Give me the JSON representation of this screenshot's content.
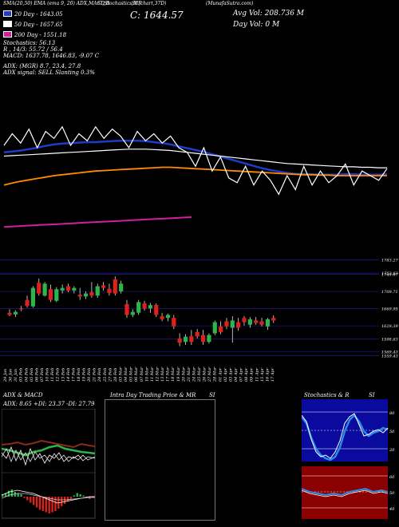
{
  "header": {
    "items": [
      "SMA(20,50) EMA (ema 9, 20) ADX,MACD,B",
      "SI,Stochastics,MR",
      "SI (chart,37D)",
      "(MunafaSutra.com)"
    ],
    "price": "C: 1644.57",
    "avg_vol": "Avg Vol: 208.736  M",
    "day_vol": "Day Vol: 0  M"
  },
  "legend": [
    {
      "label": "20  Day  - 1643.05",
      "color": "#1e3cc8"
    },
    {
      "label": "50  Day  - 1657.65",
      "color": "#ffffff"
    },
    {
      "label": "200  Day  - 1551.18",
      "color": "#d21ea0"
    }
  ],
  "indicators": [
    "Stochastics: 56.13",
    "R   ,   14/3: 55.72 / 56.4",
    "MACD: 1637.78,  1646.83,  -9.07 C",
    "ADX:                    (MGR) 8.7,  23.4,  27.8",
    "ADX  signal: SELL  Slanting  0.3%"
  ],
  "price_axis": [
    "1783.27",
    "1752.63",
    "1749.67",
    "1709.71",
    "1669.95",
    "1629.39",
    "1598.63",
    "1569.43",
    "1559.43"
  ],
  "date_labels": [
    "29 Jan",
    "30 Jan",
    "31 Jan",
    "03 Feb",
    "04 Feb",
    "05 Feb",
    "06 Feb",
    "07 Feb",
    "10 Feb",
    "11 Feb",
    "12 Feb",
    "13 Feb",
    "14 Feb",
    "17 Feb",
    "18 Feb",
    "19 Feb",
    "20 Feb",
    "21 Feb",
    "24 Feb",
    "25 Feb",
    "27 Feb",
    "28 Feb",
    "03 Mar",
    "04 Mar",
    "05 Mar",
    "06 Mar",
    "07 Mar",
    "10 Mar",
    "11 Mar",
    "12 Mar",
    "13 Mar",
    "17 Mar",
    "18 Mar",
    "19 Mar",
    "20 Mar",
    "21 Mar",
    "24 Mar",
    "25 Mar",
    "26 Mar",
    "27 Mar",
    "28 Mar",
    "01 Apr",
    "02 Apr",
    "03 Apr",
    "04 Apr",
    "07 Apr",
    "08 Apr",
    "09 Apr",
    "11 Apr",
    "15 Apr",
    "16 Apr",
    "17 Apr"
  ],
  "panels": {
    "adx_title": "ADX  & MACD",
    "adx_values": "ADX: 8.65  +DI: 23.37  -DI: 27.79",
    "intraday_title": "Intra  Day Trading Price  & MR",
    "intraday_si": "SI",
    "stoch_title": "Stochastics & R",
    "stoch_si": "SI",
    "stoch_ticks": [
      "80",
      "50",
      "20"
    ],
    "rsi_ticks": [
      "60",
      "50",
      "40"
    ]
  },
  "chart_data": [
    {
      "type": "line",
      "name": "price_ma",
      "series": [
        {
          "name": "20 Day",
          "color": "#1e3cc8",
          "values": [
            1690,
            1692,
            1694,
            1697,
            1700,
            1704,
            1707,
            1709,
            1710,
            1711,
            1712,
            1712,
            1713,
            1714,
            1715,
            1715,
            1715,
            1714,
            1712,
            1710,
            1707,
            1703,
            1699,
            1695,
            1691,
            1686,
            1681,
            1676,
            1671,
            1666,
            1661,
            1656,
            1652,
            1649,
            1646,
            1644,
            1643,
            1643,
            1642,
            1642,
            1642,
            1643,
            1643,
            1642,
            1642,
            1642,
            1643
          ]
        },
        {
          "name": "50 Day",
          "color": "#ffffff",
          "values": [
            1682,
            1683,
            1684,
            1685,
            1686,
            1687,
            1688,
            1689,
            1690,
            1691,
            1692,
            1693,
            1694,
            1695,
            1696,
            1697,
            1697,
            1697,
            1696,
            1695,
            1694,
            1692,
            1690,
            1688,
            1686,
            1684,
            1682,
            1680,
            1678,
            1676,
            1674,
            1672,
            1670,
            1668,
            1666,
            1665,
            1664,
            1663,
            1662,
            1661,
            1660,
            1659,
            1659,
            1658,
            1658,
            1657,
            1657
          ]
        },
        {
          "name": "200 Day",
          "color": "#d21ea0",
          "values": [
            1530,
            1531,
            1532,
            1533,
            1534,
            1535,
            1536,
            1537,
            1538,
            1539,
            1540,
            1541,
            1542,
            1543,
            1544,
            1545,
            1546,
            1547,
            1548,
            1549,
            1550,
            1551
          ]
        },
        {
          "name": "",
          "color": "#ff8c00",
          "values": [
            1620,
            1624,
            1628,
            1631,
            1634,
            1637,
            1640,
            1642,
            1644,
            1646,
            1648,
            1650,
            1651,
            1652,
            1653,
            1654,
            1655,
            1656,
            1657,
            1658,
            1658,
            1657,
            1656,
            1655,
            1654,
            1653,
            1652,
            1651,
            1650,
            1649,
            1648,
            1647,
            1646,
            1645,
            1644,
            1643,
            1642,
            1642,
            1641,
            1641,
            1640,
            1640,
            1640,
            1640,
            1640,
            1640,
            1640
          ]
        },
        {
          "name": "",
          "color": "#ffffff",
          "values": [
            1705,
            1730,
            1710,
            1740,
            1700,
            1735,
            1720,
            1745,
            1705,
            1730,
            1715,
            1745,
            1720,
            1740,
            1725,
            1700,
            1735,
            1715,
            1730,
            1710,
            1725,
            1700,
            1690,
            1660,
            1700,
            1650,
            1680,
            1635,
            1625,
            1660,
            1620,
            1650,
            1630,
            1600,
            1640,
            1610,
            1660,
            1620,
            1650,
            1625,
            1640,
            1665,
            1620,
            1650,
            1640,
            1630,
            1655
          ]
        }
      ]
    },
    {
      "type": "candlestick",
      "name": "ohlc",
      "candles": [
        {
          "o": 1660,
          "h": 1668,
          "l": 1652,
          "c": 1655
        },
        {
          "o": 1656,
          "h": 1666,
          "l": 1650,
          "c": 1662
        },
        {
          "o": 1670,
          "h": 1676,
          "l": 1664,
          "c": 1668
        },
        {
          "o": 1690,
          "h": 1700,
          "l": 1672,
          "c": 1676
        },
        {
          "o": 1675,
          "h": 1722,
          "l": 1672,
          "c": 1718
        },
        {
          "o": 1730,
          "h": 1740,
          "l": 1700,
          "c": 1705
        },
        {
          "o": 1700,
          "h": 1732,
          "l": 1698,
          "c": 1728
        },
        {
          "o": 1715,
          "h": 1726,
          "l": 1685,
          "c": 1690
        },
        {
          "o": 1688,
          "h": 1720,
          "l": 1685,
          "c": 1715
        },
        {
          "o": 1712,
          "h": 1726,
          "l": 1705,
          "c": 1718
        },
        {
          "o": 1722,
          "h": 1728,
          "l": 1708,
          "c": 1712
        },
        {
          "o": 1712,
          "h": 1722,
          "l": 1705,
          "c": 1718
        },
        {
          "o": 1702,
          "h": 1718,
          "l": 1690,
          "c": 1698
        },
        {
          "o": 1698,
          "h": 1710,
          "l": 1692,
          "c": 1705
        },
        {
          "o": 1708,
          "h": 1732,
          "l": 1695,
          "c": 1700
        },
        {
          "o": 1700,
          "h": 1728,
          "l": 1695,
          "c": 1722
        },
        {
          "o": 1724,
          "h": 1732,
          "l": 1712,
          "c": 1718
        },
        {
          "o": 1716,
          "h": 1728,
          "l": 1700,
          "c": 1706
        },
        {
          "o": 1738,
          "h": 1745,
          "l": 1700,
          "c": 1705
        },
        {
          "o": 1710,
          "h": 1735,
          "l": 1705,
          "c": 1728
        },
        {
          "o": 1680,
          "h": 1690,
          "l": 1648,
          "c": 1655
        },
        {
          "o": 1655,
          "h": 1668,
          "l": 1650,
          "c": 1662
        },
        {
          "o": 1660,
          "h": 1690,
          "l": 1655,
          "c": 1685
        },
        {
          "o": 1682,
          "h": 1688,
          "l": 1665,
          "c": 1670
        },
        {
          "o": 1670,
          "h": 1683,
          "l": 1660,
          "c": 1678
        },
        {
          "o": 1678,
          "h": 1682,
          "l": 1650,
          "c": 1655
        },
        {
          "o": 1652,
          "h": 1660,
          "l": 1640,
          "c": 1645
        },
        {
          "o": 1648,
          "h": 1658,
          "l": 1640,
          "c": 1655
        },
        {
          "o": 1648,
          "h": 1655,
          "l": 1622,
          "c": 1628
        },
        {
          "o": 1600,
          "h": 1612,
          "l": 1582,
          "c": 1590
        },
        {
          "o": 1592,
          "h": 1610,
          "l": 1585,
          "c": 1604
        },
        {
          "o": 1605,
          "h": 1620,
          "l": 1585,
          "c": 1592
        },
        {
          "o": 1615,
          "h": 1622,
          "l": 1600,
          "c": 1605
        },
        {
          "o": 1608,
          "h": 1620,
          "l": 1585,
          "c": 1592
        },
        {
          "o": 1592,
          "h": 1612,
          "l": 1588,
          "c": 1608
        },
        {
          "o": 1612,
          "h": 1642,
          "l": 1608,
          "c": 1638
        },
        {
          "o": 1628,
          "h": 1640,
          "l": 1610,
          "c": 1615
        },
        {
          "o": 1640,
          "h": 1648,
          "l": 1622,
          "c": 1628
        },
        {
          "o": 1625,
          "h": 1652,
          "l": 1590,
          "c": 1642
        },
        {
          "o": 1638,
          "h": 1648,
          "l": 1618,
          "c": 1625
        },
        {
          "o": 1648,
          "h": 1652,
          "l": 1630,
          "c": 1638
        },
        {
          "o": 1632,
          "h": 1650,
          "l": 1625,
          "c": 1645
        },
        {
          "o": 1642,
          "h": 1650,
          "l": 1632,
          "c": 1636
        },
        {
          "o": 1640,
          "h": 1648,
          "l": 1628,
          "c": 1632
        },
        {
          "o": 1628,
          "h": 1648,
          "l": 1620,
          "c": 1645
        },
        {
          "o": 1648,
          "h": 1654,
          "l": 1636,
          "c": 1642
        }
      ]
    }
  ]
}
